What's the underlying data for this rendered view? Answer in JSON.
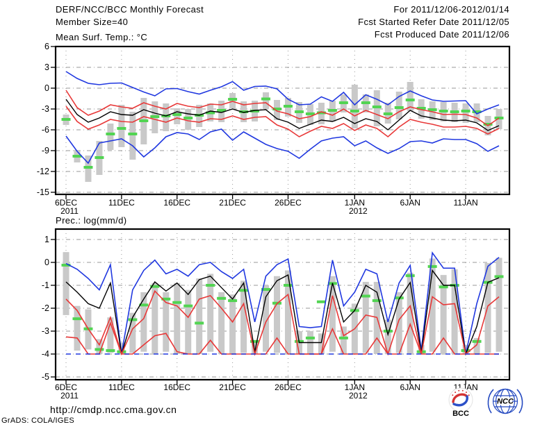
{
  "header": {
    "title": "DERF/NCC/BCC Monthly Forecast",
    "member_size": "Member Size=40",
    "for_range": "For 2011/12/06-2012/01/14",
    "refer_date": "Fcst Started Refer Date 2011/12/05",
    "produced_date": "Fcst Produced Date 2011/12/06"
  },
  "footer": {
    "url": "http://cmdp.ncc.cma.gov.cn",
    "grads_credit": "GrADS: COLA/IGES"
  },
  "logos": {
    "bcc_label": "BCC",
    "ncc_label": "NCC"
  },
  "colors": {
    "line_blue": "#2038e0",
    "line_red": "#e83838",
    "line_black": "#000000",
    "dash_green": "#52d452",
    "bar_gray": "#c9c9c9",
    "grid_gray": "#979797",
    "logo_navy": "#1b2f7a",
    "logo_blue": "#2449c0",
    "logo_red": "#d43232"
  },
  "chart_data": [
    {
      "type": "line",
      "title": "Mean Surf. Temp.: °C",
      "n_days": 40,
      "ylim": [
        -15,
        6
      ],
      "yticks": [
        6,
        3,
        0,
        -3,
        -6,
        -9,
        -12,
        -15
      ],
      "grid": true,
      "xticks": [
        {
          "day": 0,
          "label": "6DEC",
          "year": "2011"
        },
        {
          "day": 5,
          "label": "11DEC"
        },
        {
          "day": 10,
          "label": "16DEC"
        },
        {
          "day": 15,
          "label": "21DEC"
        },
        {
          "day": 20,
          "label": "26DEC"
        },
        {
          "day": 26,
          "label": "1JAN",
          "year": "2012"
        },
        {
          "day": 31,
          "label": "6JAN"
        },
        {
          "day": 36,
          "label": "11JAN"
        }
      ],
      "bars": {
        "name": "spread-bars",
        "top": [
          -3.8,
          -8.9,
          -9.7,
          -7.6,
          -5.1,
          -2.4,
          -3.4,
          -1.4,
          -1.9,
          -2.2,
          -2.9,
          -3.0,
          -2.4,
          -2.2,
          -1.8,
          -0.7,
          -1.9,
          -1.8,
          -0.6,
          -1.7,
          -1.4,
          -2.0,
          -2.3,
          -2.1,
          -1.8,
          -0.9,
          0.5,
          -0.9,
          -0.3,
          -2.1,
          -0.5,
          0.9,
          -1.6,
          -1.9,
          -2.0,
          -2.1,
          -2.2,
          -2.2,
          -4.0,
          -3.0
        ],
        "bottom": [
          -5.3,
          -10.7,
          -13.5,
          -12.5,
          -8.9,
          -8.5,
          -10.3,
          -8.1,
          -6.5,
          -6.2,
          -5.2,
          -6.0,
          -5.6,
          -4.8,
          -4.9,
          -2.9,
          -4.9,
          -4.8,
          -3.0,
          -4.6,
          -4.1,
          -5.0,
          -5.3,
          -5.2,
          -4.8,
          -3.5,
          -5.8,
          -3.5,
          -5.5,
          -5.1,
          -4.5,
          -3.3,
          -4.4,
          -4.6,
          -4.8,
          -4.9,
          -5.0,
          -4.9,
          -6.8,
          -5.9
        ]
      },
      "green_dashes": [
        -4.5,
        -9.8,
        -11.4,
        -10.0,
        -6.6,
        -5.8,
        -6.6,
        -4.7,
        -4.1,
        -4.0,
        -3.8,
        -4.3,
        -3.9,
        -3.55,
        -3.2,
        -1.6,
        -3.4,
        -3.3,
        -1.55,
        -3.0,
        -2.6,
        -3.4,
        -3.7,
        -3.55,
        -3.2,
        -2.1,
        -3.3,
        -2.1,
        -2.7,
        -3.7,
        -2.8,
        -1.7,
        -2.9,
        -3.1,
        -3.3,
        -3.4,
        -3.3,
        -3.4,
        -5.2,
        -4.3
      ],
      "series": [
        {
          "name": "blue-upper",
          "color": "#2038e0",
          "values": [
            2.4,
            1.4,
            0.7,
            0.5,
            0.7,
            0.75,
            0.1,
            -0.55,
            -1.1,
            -0.1,
            -0.05,
            -0.5,
            -0.85,
            -0.3,
            0.2,
            0.95,
            -0.3,
            0.25,
            0.3,
            -0.1,
            -1.6,
            -2.4,
            -2.3,
            -1.25,
            -1.9,
            -0.6,
            -2.4,
            -0.95,
            -1.6,
            -2.4,
            -1.2,
            -0.4,
            -1.1,
            -1.7,
            -1.9,
            -1.85,
            -1.8,
            -3.7,
            -3.0,
            -2.4
          ]
        },
        {
          "name": "red-upper",
          "color": "#e83838",
          "values": [
            -0.3,
            -2.8,
            -3.9,
            -3.3,
            -2.4,
            -2.7,
            -2.9,
            -2.1,
            -2.6,
            -3.0,
            -2.2,
            -2.6,
            -2.8,
            -2.3,
            -2.4,
            -1.9,
            -2.4,
            -2.2,
            -2.1,
            -3.3,
            -3.7,
            -4.4,
            -4.1,
            -3.4,
            -3.9,
            -3.0,
            -4.0,
            -3.2,
            -3.8,
            -4.4,
            -3.4,
            -2.7,
            -3.1,
            -3.4,
            -3.8,
            -3.75,
            -3.8,
            -4.3,
            -5.4,
            -4.3
          ]
        },
        {
          "name": "ensemble-mean",
          "color": "#000000",
          "values": [
            -1.6,
            -3.8,
            -4.9,
            -4.3,
            -3.4,
            -3.8,
            -3.9,
            -3.1,
            -3.6,
            -4.0,
            -3.4,
            -3.7,
            -3.9,
            -3.3,
            -3.5,
            -3.0,
            -3.5,
            -3.2,
            -3.1,
            -4.4,
            -4.9,
            -5.8,
            -5.2,
            -4.6,
            -4.8,
            -4.2,
            -5.1,
            -4.4,
            -4.8,
            -6.0,
            -4.6,
            -3.2,
            -4.0,
            -4.3,
            -4.6,
            -4.7,
            -4.6,
            -5.0,
            -6.1,
            -5.4
          ]
        },
        {
          "name": "red-lower",
          "color": "#e83838",
          "values": [
            -2.6,
            -4.8,
            -5.9,
            -5.3,
            -4.5,
            -4.8,
            -4.9,
            -4.1,
            -4.5,
            -4.9,
            -4.3,
            -4.7,
            -4.9,
            -4.4,
            -4.5,
            -4.0,
            -4.5,
            -4.2,
            -4.1,
            -5.3,
            -5.9,
            -7.0,
            -6.2,
            -5.5,
            -5.8,
            -5.1,
            -6.1,
            -5.3,
            -5.8,
            -7.0,
            -5.6,
            -4.5,
            -4.9,
            -5.2,
            -5.6,
            -5.6,
            -5.5,
            -5.8,
            -6.6,
            -5.8
          ]
        },
        {
          "name": "blue-lower",
          "color": "#2038e0",
          "values": [
            -6.9,
            -9.1,
            -10.8,
            -7.9,
            -7.6,
            -7.3,
            -8.3,
            -9.9,
            -8.6,
            -7.0,
            -6.4,
            -6.6,
            -7.4,
            -6.3,
            -5.9,
            -7.5,
            -6.3,
            -7.2,
            -8.1,
            -8.7,
            -9.1,
            -10.1,
            -8.8,
            -7.6,
            -7.2,
            -7.0,
            -8.3,
            -7.6,
            -8.6,
            -9.4,
            -8.7,
            -7.7,
            -7.6,
            -7.9,
            -7.3,
            -7.4,
            -7.4,
            -8.0,
            -9.1,
            -8.3
          ]
        }
      ]
    },
    {
      "type": "line",
      "title": "Prec.: log(mm/d)",
      "n_days": 40,
      "ylim": [
        -5,
        1
      ],
      "yticks": [
        1,
        0,
        -1,
        -2,
        -3,
        -4,
        -5
      ],
      "grid": true,
      "xticks": [
        {
          "day": 0,
          "label": "6DEC",
          "year": "2011"
        },
        {
          "day": 5,
          "label": "11DEC"
        },
        {
          "day": 10,
          "label": "16DEC"
        },
        {
          "day": 15,
          "label": "21DEC"
        },
        {
          "day": 20,
          "label": "26DEC"
        },
        {
          "day": 26,
          "label": "1JAN",
          "year": "2012"
        },
        {
          "day": 31,
          "label": "6JAN"
        },
        {
          "day": 36,
          "label": "11JAN"
        }
      ],
      "bars": {
        "name": "spread-bars",
        "top": [
          0.45,
          -1.9,
          -2.05,
          -3.35,
          -2.4,
          -3.5,
          -2.2,
          -1.3,
          -0.9,
          -1.3,
          -0.9,
          -1.2,
          -0.7,
          -0.5,
          -1.3,
          -1.4,
          -0.8,
          -3.4,
          -1.0,
          -0.6,
          -0.35,
          -3.0,
          -3.0,
          -3.1,
          -0.6,
          -2.8,
          -1.8,
          -0.85,
          -0.85,
          -2.5,
          -1.3,
          -0.45,
          -3.6,
          0.17,
          -0.55,
          -0.3,
          -3.6,
          -3.3,
          -0.03,
          0.2
        ],
        "bottom": [
          -2.3,
          -3.85,
          -3.8,
          -4,
          -3.95,
          -4,
          -3.95,
          -3.9,
          -4,
          -3.9,
          -4,
          -4,
          -4,
          -3.9,
          -4,
          -4,
          -3.95,
          -4,
          -3.9,
          -3.95,
          -4,
          -4,
          -4,
          -4,
          -3.9,
          -4,
          -4,
          -3.95,
          -4,
          -4,
          -3.95,
          -4,
          -4,
          -3.9,
          -4,
          -4,
          -4,
          -4,
          -3.95,
          -3.9
        ]
      },
      "green_dashes": [
        -0.12,
        -2.46,
        -2.9,
        -3.8,
        -3.85,
        -3.9,
        -2.5,
        -1.86,
        -1.05,
        -1.6,
        -1.75,
        -1.9,
        -2.65,
        -1.0,
        -1.57,
        -1.67,
        -1.22,
        -3.45,
        -1.18,
        -1.78,
        -1.0,
        -3.45,
        -3.3,
        -1.72,
        -0.92,
        -3.3,
        -2.1,
        -1.47,
        -1.67,
        -3.0,
        -1.55,
        -0.58,
        -3.9,
        -0.18,
        -1.07,
        -1.0,
        -3.85,
        -3.45,
        -0.87,
        -0.62
      ],
      "series": [
        {
          "name": "blue-upper",
          "color": "#2038e0",
          "values": [
            -0.05,
            -0.3,
            -0.7,
            -1.2,
            -0.1,
            -4.0,
            -1.2,
            -0.35,
            0.1,
            -0.5,
            -0.3,
            -0.6,
            -0.1,
            0.0,
            -0.4,
            -0.7,
            -0.3,
            -2.6,
            -0.6,
            -0.1,
            0.15,
            -2.8,
            -2.85,
            -2.8,
            0.1,
            -1.9,
            -1.3,
            -0.3,
            -0.5,
            -2.6,
            -0.9,
            -0.13,
            -3.85,
            0.42,
            -0.25,
            -0.25,
            -4.0,
            -1.8,
            -0.17,
            0.22
          ]
        },
        {
          "name": "ensemble-mean",
          "color": "#000000",
          "values": [
            -0.85,
            -1.3,
            -1.8,
            -2.0,
            -0.9,
            -4.0,
            -2.4,
            -1.6,
            -0.85,
            -1.25,
            -0.9,
            -1.4,
            -0.75,
            -0.6,
            -1.1,
            -1.6,
            -0.9,
            -3.9,
            -1.5,
            -0.8,
            -0.55,
            -3.5,
            -3.5,
            -3.5,
            -0.9,
            -2.6,
            -2.1,
            -1.0,
            -1.3,
            -3.15,
            -1.6,
            -0.88,
            -3.95,
            -0.35,
            -1.0,
            -1.0,
            -4.0,
            -2.8,
            -0.87,
            -0.67
          ]
        },
        {
          "name": "red-middle",
          "color": "#e83838",
          "values": [
            -1.6,
            -2.1,
            -2.9,
            -3.6,
            -2.4,
            -4.0,
            -2.9,
            -2.45,
            -1.25,
            -1.75,
            -1.9,
            -2.4,
            -1.6,
            -1.45,
            -2.0,
            -2.6,
            -1.8,
            -4.0,
            -2.6,
            -1.8,
            -1.4,
            -4.0,
            -4.0,
            -4.0,
            -1.45,
            -3.2,
            -2.9,
            -2.3,
            -2.4,
            -4.0,
            -2.5,
            -1.9,
            -4.0,
            -1.5,
            -1.85,
            -1.8,
            -4.0,
            -3.6,
            -1.9,
            -1.5
          ]
        },
        {
          "name": "red-lower",
          "color": "#e83838",
          "values": [
            -3.25,
            -3.3,
            -4,
            -4,
            -2.65,
            -4,
            -4,
            -3.6,
            -3.2,
            -3.1,
            -3.9,
            -4,
            -4,
            -3.4,
            -4,
            -4,
            -4,
            -4,
            -4,
            -3.3,
            -4,
            -4,
            -4,
            -4,
            -2.9,
            -4,
            -4,
            -4,
            -3.3,
            -4,
            -4,
            -2.7,
            -4,
            -4,
            -3.3,
            -4,
            -4,
            -4,
            -4,
            -4
          ]
        },
        {
          "name": "blue-lower",
          "color": "#2038e0",
          "dashed": true,
          "values": [
            -4,
            -4,
            -4,
            -4,
            -4,
            -4,
            -4,
            -4,
            -4,
            -4,
            -4,
            -4,
            -4,
            -4,
            -4,
            -4,
            -4,
            -4,
            -4,
            -4,
            -4,
            -4,
            -4,
            -4,
            -4,
            -4,
            -4,
            -4,
            -4,
            -4,
            -4,
            -4,
            -4,
            -4,
            -4,
            -4,
            -4,
            -4,
            -4,
            -4
          ]
        }
      ]
    }
  ]
}
